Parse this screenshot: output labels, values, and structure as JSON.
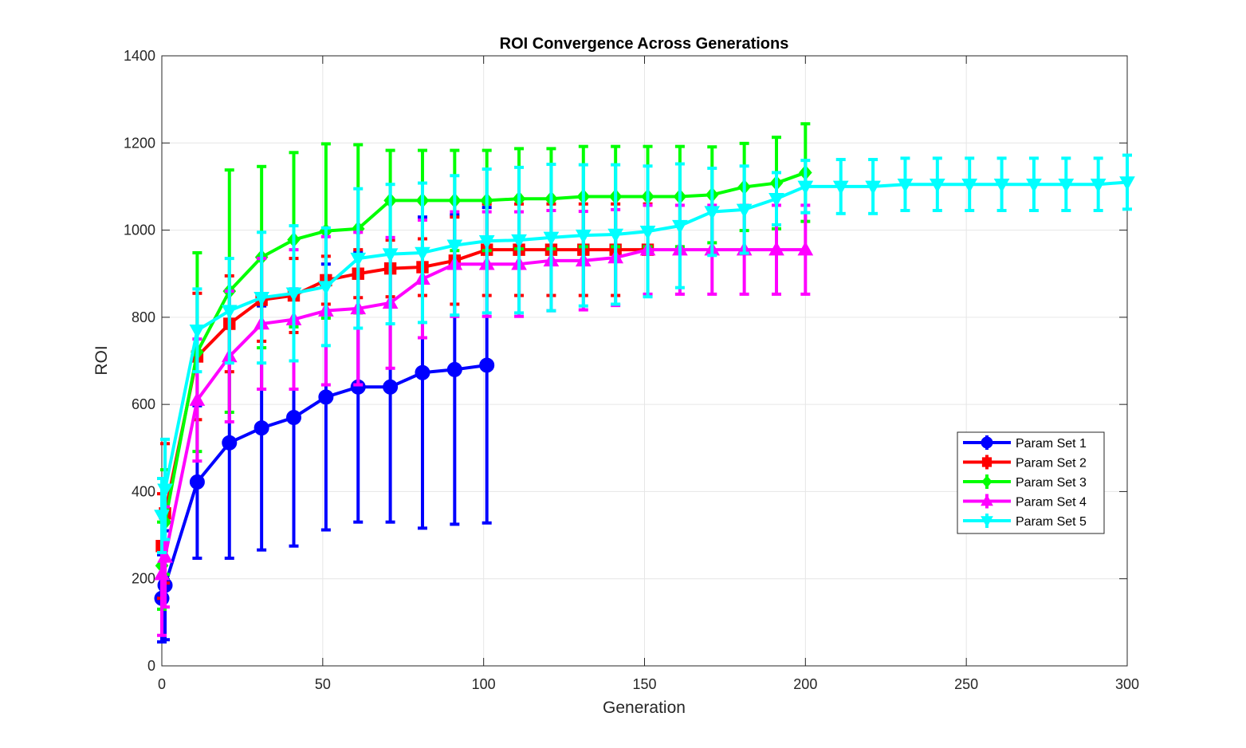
{
  "chart_data": {
    "type": "line",
    "title": "ROI Convergence Across Generations",
    "xlabel": "Generation",
    "ylabel": "ROI",
    "xlim": [
      0,
      300
    ],
    "ylim": [
      0,
      1400
    ],
    "xticks": [
      0,
      50,
      100,
      150,
      200,
      250,
      300
    ],
    "yticks": [
      0,
      200,
      400,
      600,
      800,
      1000,
      1200,
      1400
    ],
    "grid": true,
    "legend_position": "right",
    "error_bars": true,
    "series": [
      {
        "name": "Param Set 1",
        "color": "#0000ff",
        "marker": "circle",
        "x": [
          0,
          1,
          11,
          21,
          31,
          41,
          51,
          61,
          71,
          81,
          91,
          101
        ],
        "y": [
          155,
          185,
          422,
          512,
          546,
          570,
          617,
          640,
          640,
          673,
          680,
          690
        ],
        "err": [
          100,
          125,
          175,
          265,
          280,
          295,
          305,
          310,
          310,
          357,
          355,
          362
        ]
      },
      {
        "name": "Param Set 2",
        "color": "#ff0000",
        "marker": "square",
        "x": [
          0,
          1,
          11,
          21,
          31,
          41,
          51,
          61,
          71,
          81,
          91,
          101,
          111,
          121,
          131,
          141,
          151
        ],
        "y": [
          275,
          350,
          710,
          785,
          840,
          850,
          885,
          900,
          912,
          915,
          930,
          955,
          955,
          955,
          955,
          955,
          955
        ],
        "err": [
          120,
          160,
          145,
          110,
          95,
          85,
          55,
          55,
          65,
          65,
          100,
          105,
          105,
          105,
          105,
          105,
          105
        ]
      },
      {
        "name": "Param Set 3",
        "color": "#00ff00",
        "marker": "diamond",
        "x": [
          0,
          1,
          11,
          21,
          31,
          41,
          51,
          61,
          71,
          81,
          91,
          101,
          111,
          121,
          131,
          141,
          151,
          161,
          171,
          181,
          191,
          200
        ],
        "y": [
          230,
          330,
          720,
          860,
          938,
          978,
          998,
          1003,
          1068,
          1068,
          1068,
          1068,
          1072,
          1072,
          1077,
          1077,
          1077,
          1077,
          1081,
          1099,
          1108,
          1132
        ],
        "err": [
          100,
          120,
          228,
          278,
          208,
          200,
          200,
          193,
          115,
          115,
          115,
          115,
          115,
          115,
          115,
          115,
          115,
          115,
          110,
          100,
          105,
          112
        ]
      },
      {
        "name": "Param Set 4",
        "color": "#ff00ff",
        "marker": "triangle-up",
        "x": [
          0,
          1,
          11,
          21,
          31,
          41,
          51,
          61,
          71,
          81,
          91,
          101,
          111,
          121,
          131,
          141,
          151,
          161,
          171,
          181,
          191,
          200
        ],
        "y": [
          210,
          250,
          610,
          710,
          785,
          795,
          815,
          820,
          833,
          888,
          922,
          922,
          922,
          930,
          930,
          937,
          955,
          955,
          955,
          955,
          955,
          955
        ],
        "err": [
          140,
          115,
          140,
          150,
          150,
          160,
          170,
          175,
          150,
          135,
          120,
          120,
          120,
          115,
          113,
          110,
          102,
          102,
          102,
          102,
          102,
          102
        ]
      },
      {
        "name": "Param Set 5",
        "color": "#00ffff",
        "marker": "triangle-down",
        "x": [
          0,
          1,
          11,
          21,
          31,
          41,
          51,
          61,
          71,
          81,
          91,
          101,
          111,
          121,
          131,
          141,
          151,
          161,
          171,
          181,
          191,
          200,
          211,
          221,
          231,
          241,
          251,
          261,
          271,
          281,
          291,
          300
        ],
        "y": [
          345,
          405,
          770,
          815,
          845,
          855,
          870,
          935,
          945,
          948,
          965,
          975,
          977,
          983,
          988,
          990,
          997,
          1010,
          1042,
          1047,
          1072,
          1100,
          1100,
          1100,
          1105,
          1105,
          1105,
          1105,
          1105,
          1105,
          1105,
          1110
        ],
        "err": [
          85,
          115,
          95,
          120,
          150,
          155,
          135,
          160,
          160,
          160,
          160,
          165,
          167,
          168,
          162,
          160,
          150,
          142,
          100,
          100,
          60,
          60,
          62,
          62,
          60,
          60,
          60,
          60,
          60,
          60,
          60,
          62
        ]
      }
    ]
  }
}
